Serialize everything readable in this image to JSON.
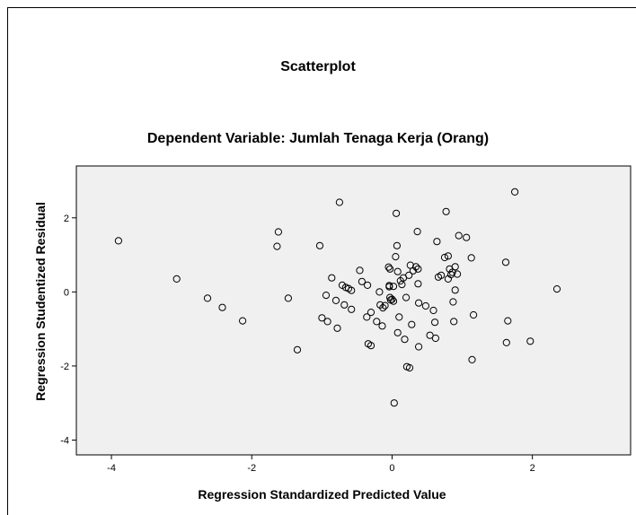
{
  "chart_data": {
    "type": "scatter",
    "title": "Scatterplot",
    "subtitle": "Dependent Variable: Jumlah Tenaga Kerja (Orang)",
    "xlabel": "Regression Standardized Predicted Value",
    "ylabel": "Regression Studentized Residual",
    "xlim": [
      -4.5,
      3.4
    ],
    "ylim": [
      -4.4,
      3.4
    ],
    "xticks": [
      -4,
      -2,
      0,
      2
    ],
    "yticks": [
      -4,
      -2,
      0,
      2
    ],
    "grid": false,
    "plot_background": "#f0f0f0",
    "marker_color": "#000000",
    "points": [
      [
        -3.9,
        1.38
      ],
      [
        -3.07,
        0.35
      ],
      [
        -2.63,
        -0.17
      ],
      [
        -2.42,
        -0.42
      ],
      [
        -2.13,
        -0.78
      ],
      [
        -1.62,
        1.62
      ],
      [
        -1.64,
        1.23
      ],
      [
        -1.48,
        -0.17
      ],
      [
        -1.35,
        -1.56
      ],
      [
        -1.03,
        1.25
      ],
      [
        -1.0,
        -0.7
      ],
      [
        -0.94,
        -0.09
      ],
      [
        -0.92,
        -0.8
      ],
      [
        -0.86,
        0.38
      ],
      [
        -0.8,
        -0.23
      ],
      [
        -0.78,
        -0.98
      ],
      [
        -0.75,
        2.42
      ],
      [
        -0.71,
        0.18
      ],
      [
        -0.68,
        -0.35
      ],
      [
        -0.66,
        0.12
      ],
      [
        -0.62,
        0.09
      ],
      [
        -0.58,
        0.04
      ],
      [
        -0.58,
        -0.47
      ],
      [
        -0.46,
        0.58
      ],
      [
        -0.43,
        0.28
      ],
      [
        -0.36,
        -0.68
      ],
      [
        -0.35,
        0.18
      ],
      [
        -0.34,
        -1.4
      ],
      [
        -0.3,
        -1.45
      ],
      [
        -0.3,
        -0.55
      ],
      [
        -0.22,
        -0.8
      ],
      [
        -0.18,
        0.0
      ],
      [
        -0.17,
        -0.35
      ],
      [
        -0.14,
        -0.92
      ],
      [
        -0.13,
        -0.43
      ],
      [
        -0.1,
        -0.37
      ],
      [
        -0.05,
        0.67
      ],
      [
        -0.03,
        0.62
      ],
      [
        -0.04,
        0.17
      ],
      [
        -0.04,
        0.14
      ],
      [
        -0.03,
        -0.15
      ],
      [
        -0.02,
        -0.22
      ],
      [
        0.0,
        -0.2
      ],
      [
        0.02,
        0.15
      ],
      [
        0.02,
        -0.25
      ],
      [
        0.03,
        -3.0
      ],
      [
        0.05,
        0.95
      ],
      [
        0.06,
        2.12
      ],
      [
        0.07,
        1.25
      ],
      [
        0.08,
        0.55
      ],
      [
        0.08,
        -1.1
      ],
      [
        0.1,
        -0.68
      ],
      [
        0.12,
        0.3
      ],
      [
        0.14,
        0.2
      ],
      [
        0.16,
        0.38
      ],
      [
        0.18,
        -1.28
      ],
      [
        0.2,
        -0.15
      ],
      [
        0.21,
        -2.02
      ],
      [
        0.24,
        0.45
      ],
      [
        0.25,
        -2.05
      ],
      [
        0.26,
        0.72
      ],
      [
        0.28,
        -0.88
      ],
      [
        0.3,
        0.57
      ],
      [
        0.34,
        0.68
      ],
      [
        0.36,
        1.63
      ],
      [
        0.37,
        0.62
      ],
      [
        0.37,
        0.22
      ],
      [
        0.38,
        -0.3
      ],
      [
        0.38,
        -1.48
      ],
      [
        0.48,
        -0.38
      ],
      [
        0.54,
        -1.17
      ],
      [
        0.59,
        -0.5
      ],
      [
        0.61,
        -0.82
      ],
      [
        0.62,
        -1.25
      ],
      [
        0.64,
        1.36
      ],
      [
        0.66,
        0.4
      ],
      [
        0.7,
        0.45
      ],
      [
        0.75,
        0.93
      ],
      [
        0.77,
        2.17
      ],
      [
        0.8,
        0.97
      ],
      [
        0.8,
        0.35
      ],
      [
        0.82,
        0.62
      ],
      [
        0.84,
        0.47
      ],
      [
        0.86,
        0.53
      ],
      [
        0.87,
        -0.27
      ],
      [
        0.88,
        -0.8
      ],
      [
        0.9,
        0.05
      ],
      [
        0.9,
        0.68
      ],
      [
        0.93,
        0.48
      ],
      [
        0.95,
        1.52
      ],
      [
        1.06,
        1.47
      ],
      [
        1.13,
        0.92
      ],
      [
        1.14,
        -1.83
      ],
      [
        1.16,
        -0.62
      ],
      [
        1.62,
        0.8
      ],
      [
        1.63,
        -1.37
      ],
      [
        1.65,
        -0.78
      ],
      [
        1.75,
        2.7
      ],
      [
        1.97,
        -1.33
      ],
      [
        2.35,
        0.08
      ]
    ]
  }
}
